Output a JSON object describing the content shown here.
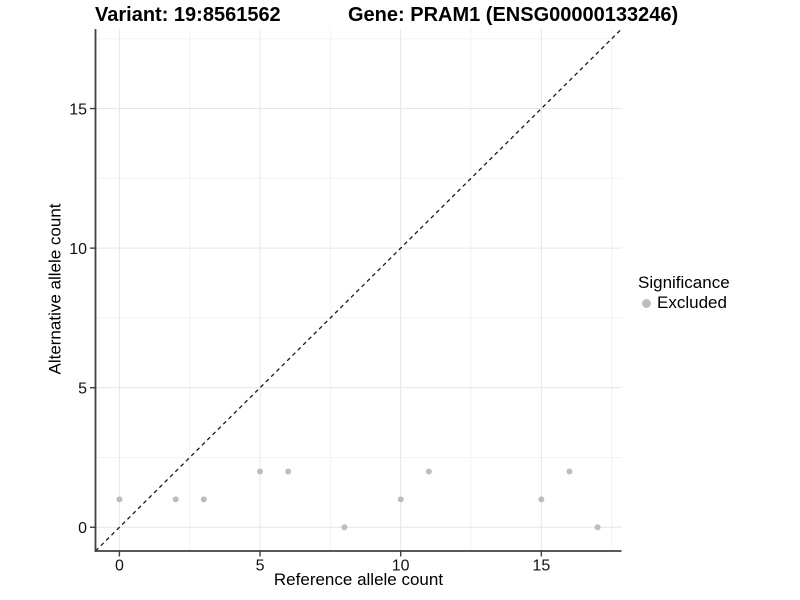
{
  "header": {
    "variant_title": "Variant: 19:8561562",
    "gene_title": "Gene: PRAM1 (ENSG00000133246)"
  },
  "chart_data": {
    "type": "scatter",
    "xlabel": "Reference allele count",
    "ylabel": "Alternative allele count",
    "xlim": [
      -0.85,
      17.85
    ],
    "ylim": [
      -0.85,
      17.85
    ],
    "xticks": [
      0,
      5,
      10,
      15
    ],
    "yticks": [
      0,
      5,
      10,
      15
    ],
    "xticks_minor": [
      2.5,
      7.5,
      12.5,
      17.5
    ],
    "yticks_minor": [
      2.5,
      7.5,
      12.5,
      17.5
    ],
    "grid": "major+minor",
    "series": [
      {
        "name": "Excluded",
        "color": "#bdbdbd",
        "point_radius": 3,
        "points": [
          [
            0,
            1
          ],
          [
            2,
            1
          ],
          [
            3,
            1
          ],
          [
            5,
            2
          ],
          [
            6,
            2
          ],
          [
            8,
            0
          ],
          [
            10,
            1
          ],
          [
            11,
            2
          ],
          [
            15,
            1
          ],
          [
            16,
            2
          ],
          [
            17,
            0
          ]
        ]
      }
    ],
    "identity_line": {
      "style": "dashed",
      "from": [
        -0.85,
        -0.85
      ],
      "to": [
        17.85,
        17.85
      ],
      "color": "#1a1a1a"
    },
    "legend": {
      "position": "right",
      "title": "Significance",
      "entries": [
        {
          "label": "Excluded",
          "color": "#bdbdbd"
        }
      ]
    }
  },
  "colors": {
    "background": "#ffffff",
    "point": "#bdbdbd",
    "grid_major": "#e6e6e6",
    "grid_minor": "#f2f2f2",
    "axis": "#404040",
    "tick_text": "#111111",
    "title_text": "#000000"
  }
}
